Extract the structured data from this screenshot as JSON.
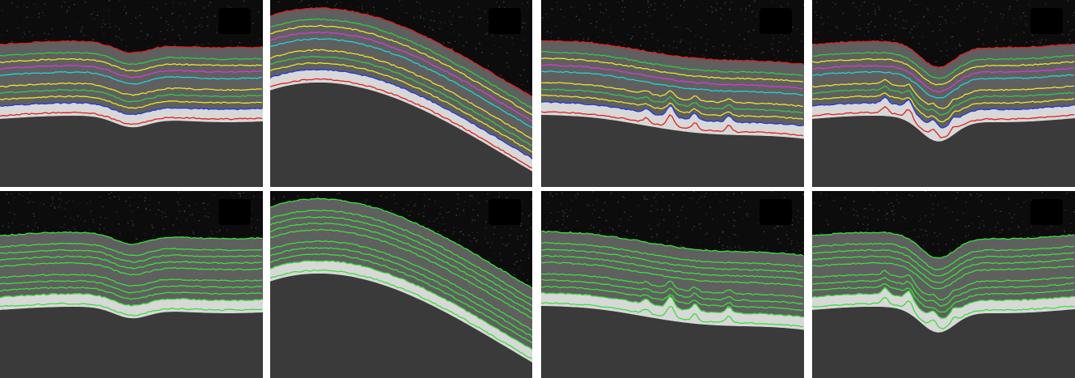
{
  "figure": {
    "panels": [
      {
        "scan": "flat-fovea-wide",
        "overlay": "multicolor-layer-boundaries"
      },
      {
        "scan": "curved-deep-fovea",
        "overlay": "multicolor-layer-boundaries"
      },
      {
        "scan": "flat-drusen",
        "overlay": "multicolor-layer-boundaries"
      },
      {
        "scan": "fovea-drusen",
        "overlay": "multicolor-layer-boundaries"
      },
      {
        "scan": "flat-fovea-wide",
        "overlay": "green-layer-boundaries"
      },
      {
        "scan": "curved-deep-fovea",
        "overlay": "green-layer-boundaries"
      },
      {
        "scan": "flat-drusen",
        "overlay": "green-layer-boundaries"
      },
      {
        "scan": "fovea-drusen",
        "overlay": "green-layer-boundaries"
      }
    ],
    "colors": {
      "background": "#0c0c0c",
      "divider": "#ffffff",
      "ilm": "#e02020",
      "layer_green": "#2ecc40",
      "layer_yellow": "#e6e628",
      "layer_magenta": "#d63ad6",
      "layer_cyan": "#22d3d3",
      "layer_blue": "#2438e0",
      "rpe": "#e02020",
      "all_green": "#39e039"
    }
  }
}
